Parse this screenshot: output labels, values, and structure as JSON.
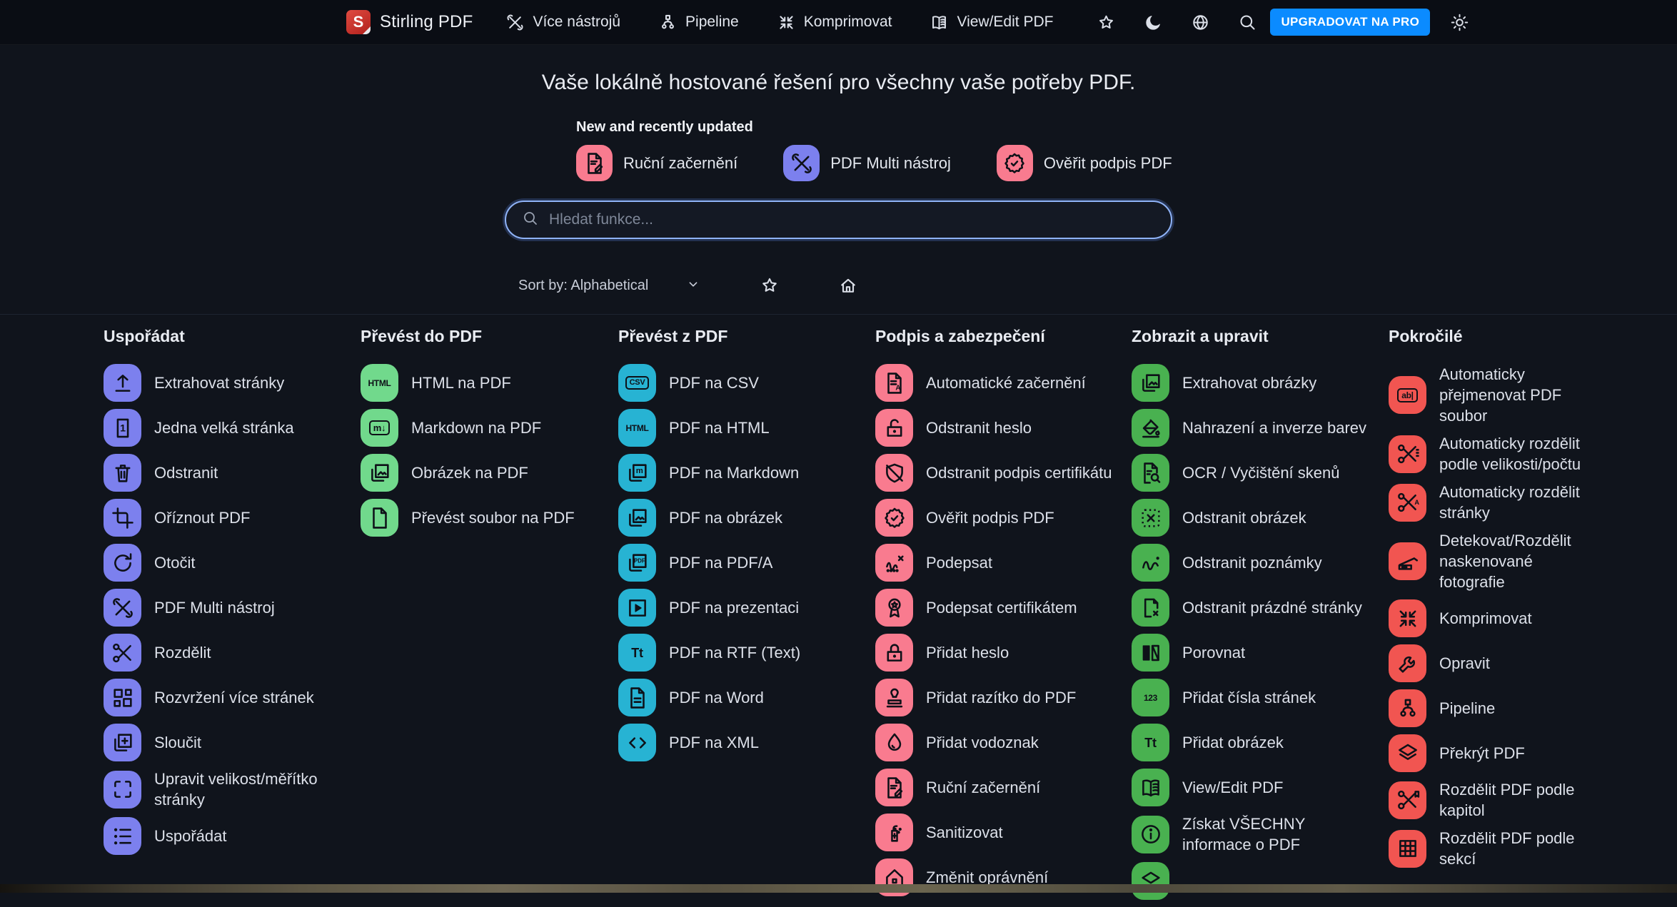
{
  "navbar": {
    "brand": "Stirling PDF",
    "logo_letter": "S",
    "items": [
      {
        "label": "Více nástrojů",
        "icon": "tools-icon"
      },
      {
        "label": "Pipeline",
        "icon": "pipeline-icon"
      },
      {
        "label": "Komprimovat",
        "icon": "compress-icon"
      },
      {
        "label": "View/Edit PDF",
        "icon": "book-icon"
      }
    ],
    "action_icons": [
      "star-icon",
      "moon-icon",
      "globe-icon",
      "search-icon"
    ],
    "upgrade_label": "UPGRADOVAT NA PRO",
    "upgrade_color": "#0b8bff",
    "settings_icon": "gear-icon"
  },
  "hero": {
    "title": "Vaše lokálně hostované řešení pro všechny vaše potřeby PDF.",
    "new_updated_label": "New and recently updated",
    "quick_items": [
      {
        "label": "Ruční začernění",
        "icon": "doc-pen-icon",
        "color": "#f97b8f"
      },
      {
        "label": "PDF Multi nástroj",
        "icon": "tools-icon",
        "color": "#7c80ee"
      },
      {
        "label": "Ověřit podpis PDF",
        "icon": "badge-check-icon",
        "color": "#f97b8f"
      }
    ],
    "search_placeholder": "Hledat funkce...",
    "sort_label": "Sort by: Alphabetical"
  },
  "columns": [
    {
      "title": "Uspořádat",
      "color": "#7c80ee",
      "items": [
        {
          "label": "Extrahovat stránky",
          "icon": "upload-icon"
        },
        {
          "label": "Jedna velká stránka",
          "icon": "single-page-icon"
        },
        {
          "label": "Odstranit",
          "icon": "trash-icon"
        },
        {
          "label": "Oříznout PDF",
          "icon": "crop-icon"
        },
        {
          "label": "Otočit",
          "icon": "rotate-icon"
        },
        {
          "label": "PDF Multi nástroj",
          "icon": "tools-icon"
        },
        {
          "label": "Rozdělit",
          "icon": "scissors-icon"
        },
        {
          "label": "Rozvržení více stránek",
          "icon": "grid-layout-icon"
        },
        {
          "label": "Sloučit",
          "icon": "merge-icon"
        },
        {
          "label": "Upravit velikost/měřítko stránky",
          "icon": "resize-icon"
        },
        {
          "label": "Uspořádat",
          "icon": "list-icon"
        }
      ]
    },
    {
      "title": "Převést do PDF",
      "color": "#71d98c",
      "items": [
        {
          "label": "HTML na PDF",
          "icon": "html-text-icon"
        },
        {
          "label": "Markdown na PDF",
          "icon": "markdown-icon"
        },
        {
          "label": "Obrázek na PDF",
          "icon": "image-copy-icon"
        },
        {
          "label": "Převést soubor na PDF",
          "icon": "file-icon"
        }
      ]
    },
    {
      "title": "Převést z PDF",
      "color": "#27b3d3",
      "items": [
        {
          "label": "PDF na CSV",
          "icon": "csv-icon"
        },
        {
          "label": "PDF na HTML",
          "icon": "html-text-icon"
        },
        {
          "label": "PDF na Markdown",
          "icon": "copy-m-icon"
        },
        {
          "label": "PDF na obrázek",
          "icon": "image-copy-icon"
        },
        {
          "label": "PDF na PDF/A",
          "icon": "copy-pdf-icon"
        },
        {
          "label": "PDF na prezentaci",
          "icon": "play-icon"
        },
        {
          "label": "PDF na RTF (Text)",
          "icon": "text-icon"
        },
        {
          "label": "PDF na Word",
          "icon": "doc-lines-icon"
        },
        {
          "label": "PDF na XML",
          "icon": "code-icon"
        }
      ]
    },
    {
      "title": "Podpis a zabezpečení",
      "color": "#f97b8f",
      "items": [
        {
          "label": "Automatické začernění",
          "icon": "doc-a-icon"
        },
        {
          "label": "Odstranit heslo",
          "icon": "unlock-icon"
        },
        {
          "label": "Odstranit podpis certifikátu",
          "icon": "shield-off-icon"
        },
        {
          "label": "Ověřit podpis PDF",
          "icon": "badge-check-icon"
        },
        {
          "label": "Podepsat",
          "icon": "signature-icon"
        },
        {
          "label": "Podepsat certifikátem",
          "icon": "ribbon-icon"
        },
        {
          "label": "Přidat heslo",
          "icon": "lock-icon"
        },
        {
          "label": "Přidat razítko do PDF",
          "icon": "stamp-icon"
        },
        {
          "label": "Přidat vodoznak",
          "icon": "droplet-icon"
        },
        {
          "label": "Ruční začernění",
          "icon": "doc-pen-icon"
        },
        {
          "label": "Sanitizovat",
          "icon": "sanitize-icon"
        },
        {
          "label": "Změnit oprávnění",
          "icon": "home-lock-icon"
        }
      ]
    },
    {
      "title": "Zobrazit a upravit",
      "color": "#49b150",
      "items": [
        {
          "label": "Extrahovat obrázky",
          "icon": "image-copy-icon"
        },
        {
          "label": "Nahrazení a inverze barev",
          "icon": "bucket-icon"
        },
        {
          "label": "OCR / Vyčištění skenů",
          "icon": "doc-search-icon"
        },
        {
          "label": "Odstranit obrázek",
          "icon": "image-remove-icon"
        },
        {
          "label": "Odstranit poznámky",
          "icon": "scribble-icon"
        },
        {
          "label": "Odstranit prázdné stránky",
          "icon": "page-remove-icon"
        },
        {
          "label": "Porovnat",
          "icon": "compare-icon"
        },
        {
          "label": "Přidat čísla stránek",
          "icon": "numbers-icon"
        },
        {
          "label": "Přidat obrázek",
          "icon": "text-icon"
        },
        {
          "label": "View/Edit PDF",
          "icon": "book-icon"
        },
        {
          "label": "Získat VŠECHNY informace o PDF",
          "icon": "info-icon"
        },
        {
          "label": "",
          "icon": "layers-icon"
        }
      ]
    },
    {
      "title": "Pokročilé",
      "color": "#f15551",
      "items": [
        {
          "label": "Automaticky přejmenovat PDF soubor",
          "icon": "rename-icon"
        },
        {
          "label": "Automaticky rozdělit podle velikosti/počtu",
          "icon": "split-size-icon"
        },
        {
          "label": "Automaticky rozdělit stránky",
          "icon": "split-pages-icon"
        },
        {
          "label": "Detekovat/Rozdělit naskenované fotografie",
          "icon": "scanner-icon"
        },
        {
          "label": "Komprimovat",
          "icon": "compress-icon"
        },
        {
          "label": "Opravit",
          "icon": "wrench-icon"
        },
        {
          "label": "Pipeline",
          "icon": "pipeline-icon"
        },
        {
          "label": "Překrýt PDF",
          "icon": "overlay-icon"
        },
        {
          "label": "Rozdělit PDF podle kapitol",
          "icon": "split-chapters-icon"
        },
        {
          "label": "Rozdělit PDF podle sekcí",
          "icon": "table-grid-icon"
        }
      ]
    }
  ]
}
